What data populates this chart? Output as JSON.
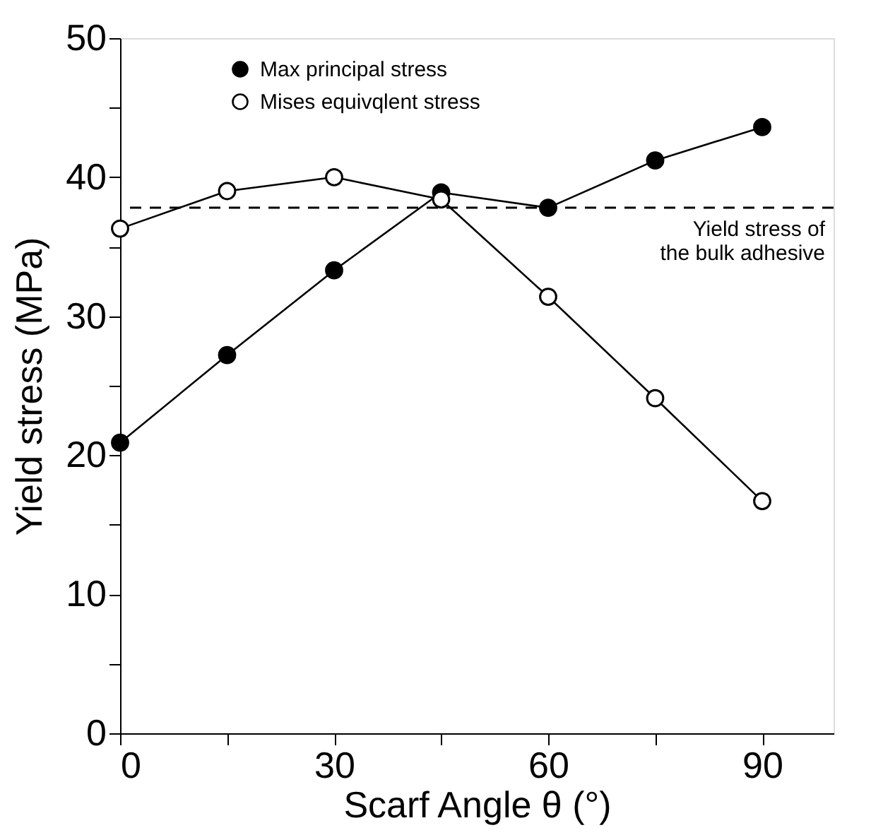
{
  "chart_data": {
    "type": "line",
    "xlabel": "Scarf Angle θ (°)",
    "ylabel": "Yield stress (MPa)",
    "x": [
      0,
      15,
      30,
      45,
      60,
      75,
      90
    ],
    "series": [
      {
        "name": "Max principal stress",
        "color": "#000000",
        "values": [
          20.9,
          27.2,
          33.3,
          38.9,
          37.8,
          41.2,
          43.6
        ]
      },
      {
        "name": "Mises equivqlent stress",
        "color": "#000000",
        "values": [
          36.3,
          39.0,
          40.0,
          38.4,
          31.4,
          24.1,
          16.7
        ]
      }
    ],
    "xlim": [
      0,
      100
    ],
    "xticks": [
      0,
      {
        "value": 15,
        "label": null
      },
      30,
      {
        "value": 45,
        "label": null
      },
      60,
      {
        "value": 75,
        "label": null
      },
      90
    ],
    "ylim": [
      0,
      50
    ],
    "yticks": [
      0,
      {
        "value": 5,
        "label": null
      },
      10,
      {
        "value": 15,
        "label": null
      },
      20,
      {
        "value": 25,
        "label": null
      },
      30,
      {
        "value": 35,
        "label": null
      },
      40,
      {
        "value": 45,
        "label": null
      },
      50
    ],
    "ref_lines": [
      {
        "axis": "y",
        "value": 37.8,
        "label": "Yield stress of\nthe bulk adhesive",
        "line_style": "dashed",
        "color": "#000000"
      }
    ],
    "grid": false,
    "legend": "top",
    "marker": "circle",
    "line_style": "solid"
  }
}
